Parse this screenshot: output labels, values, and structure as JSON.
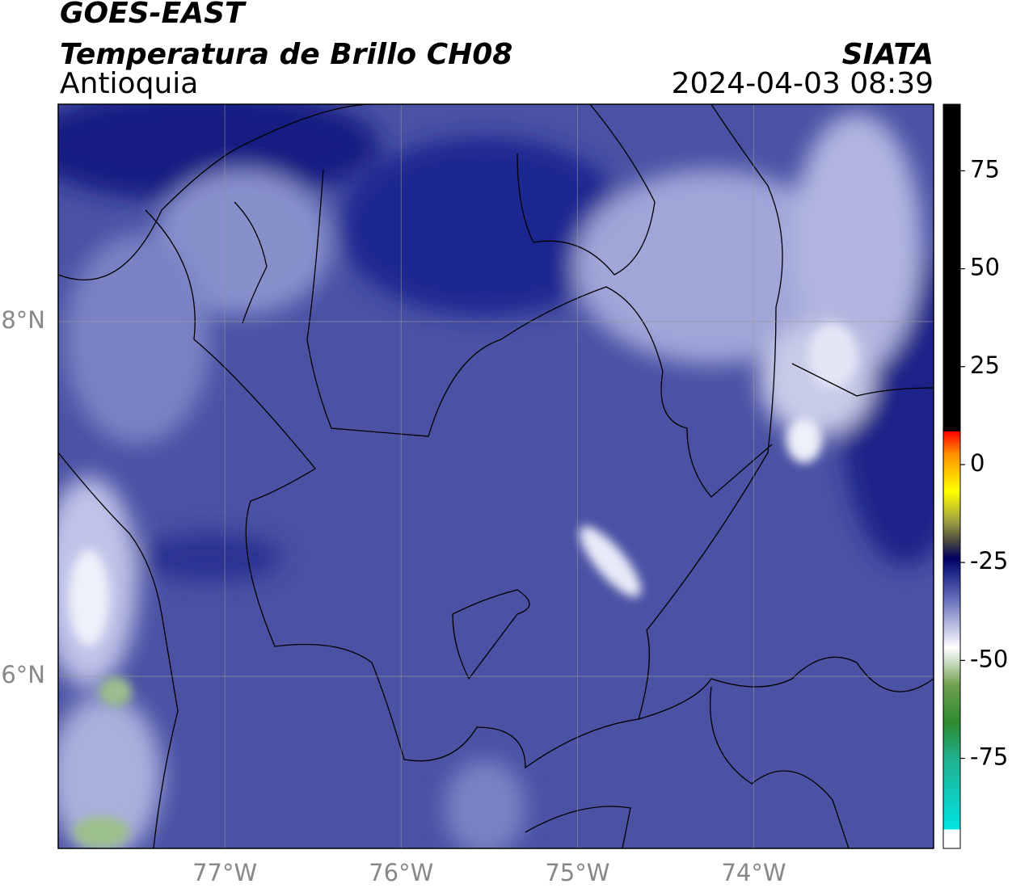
{
  "header": {
    "title": "GOES-EAST",
    "subtitle": "Temperatura de Brillo CH08",
    "region": "Antioquia",
    "source": "SIATA",
    "timestamp": "2024-04-03 08:39"
  },
  "map": {
    "lon_lim": [
      -77.945,
      -72.98
    ],
    "lat_lim": [
      5.03,
      9.225
    ],
    "lon_ticks": [
      {
        "value": -77,
        "label": "77°W"
      },
      {
        "value": -76,
        "label": "76°W"
      },
      {
        "value": -75,
        "label": "75°W"
      },
      {
        "value": -74,
        "label": "74°W"
      }
    ],
    "lat_ticks": [
      {
        "value": 8,
        "label": "8°N"
      },
      {
        "value": 6,
        "label": "6°N"
      }
    ],
    "grid": true
  },
  "colorbar": {
    "lim": [
      -98,
      92
    ],
    "ticks": [
      -75,
      -50,
      -25,
      0,
      25,
      50,
      75
    ]
  }
}
